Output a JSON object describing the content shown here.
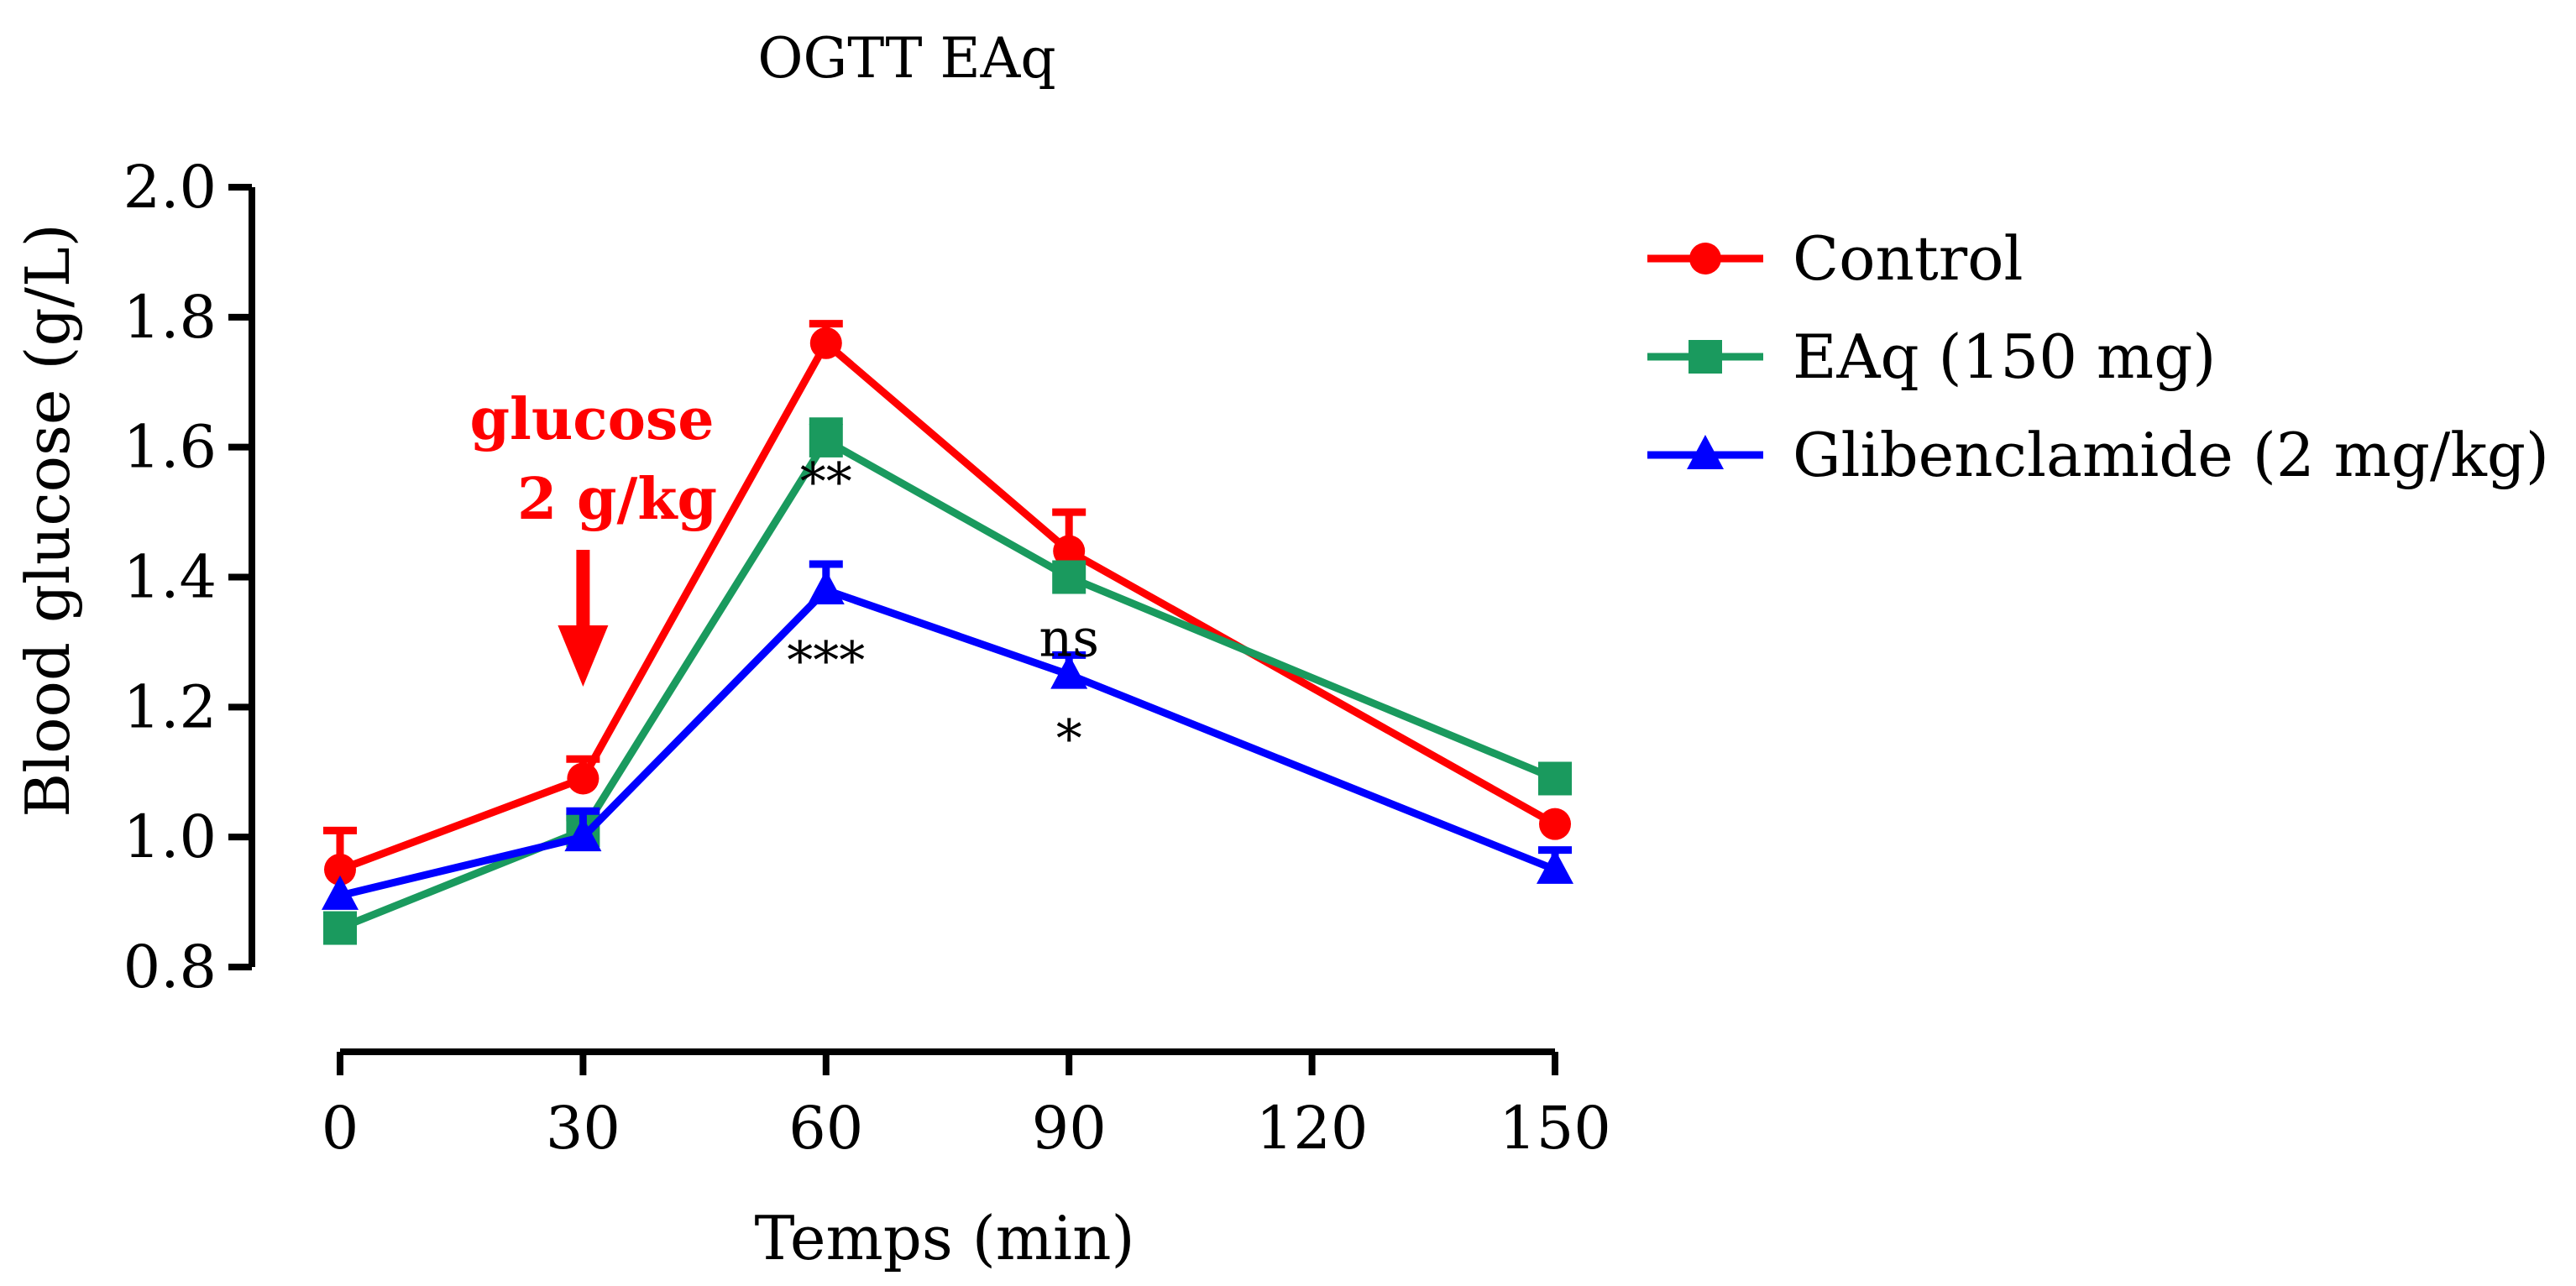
{
  "chart_data": {
    "type": "line",
    "title": "OGTT EAq",
    "xlabel": "Temps (min)",
    "ylabel": "Blood glucose (g/L)",
    "x": [
      0,
      30,
      60,
      90,
      150
    ],
    "xticks": [
      0,
      30,
      60,
      90,
      120,
      150
    ],
    "xtick_labels": [
      "0",
      "30",
      "60",
      "90",
      "120",
      "150"
    ],
    "yticks": [
      0.8,
      1.0,
      1.2,
      1.4,
      1.6,
      1.8,
      2.0
    ],
    "ytick_labels": [
      "0.8",
      "1.0",
      "1.2",
      "1.4",
      "1.6",
      "1.8",
      "2.0"
    ],
    "xlim": [
      0,
      150
    ],
    "ylim": [
      0.8,
      2.0
    ],
    "grid": false,
    "legend_position": "top-right",
    "series": [
      {
        "name": "Control",
        "color": "#ff0000",
        "marker": "circle",
        "values": [
          0.95,
          1.09,
          1.76,
          1.44,
          1.02
        ],
        "errors": [
          0.06,
          0.03,
          0.03,
          0.06,
          0.0
        ]
      },
      {
        "name": "EAq (150 mg)",
        "color": "#1a9a5e",
        "marker": "square",
        "values": [
          0.86,
          1.01,
          1.61,
          1.4,
          1.09
        ],
        "errors": [
          0.0,
          0.02,
          0.03,
          0.0,
          0.02
        ]
      },
      {
        "name": "Glibenclamide (2 mg/kg)",
        "color": "#0000ff",
        "marker": "triangle",
        "values": [
          0.91,
          1.0,
          1.38,
          1.25,
          0.95
        ],
        "errors": [
          0.0,
          0.04,
          0.04,
          0.03,
          0.03
        ]
      }
    ],
    "annotations": [
      {
        "text": "**",
        "x": 60,
        "y": 1.555,
        "color": "#000000"
      },
      {
        "text": "***",
        "x": 60,
        "y": 1.28,
        "color": "#000000"
      },
      {
        "text": "ns",
        "x": 90,
        "y": 1.315,
        "color": "#000000"
      },
      {
        "text": "*",
        "x": 90,
        "y": 1.16,
        "color": "#000000"
      }
    ],
    "injection_label": [
      "glucose",
      "2 g/kg"
    ],
    "injection_x": 30,
    "injection_color": "#ff0000"
  }
}
